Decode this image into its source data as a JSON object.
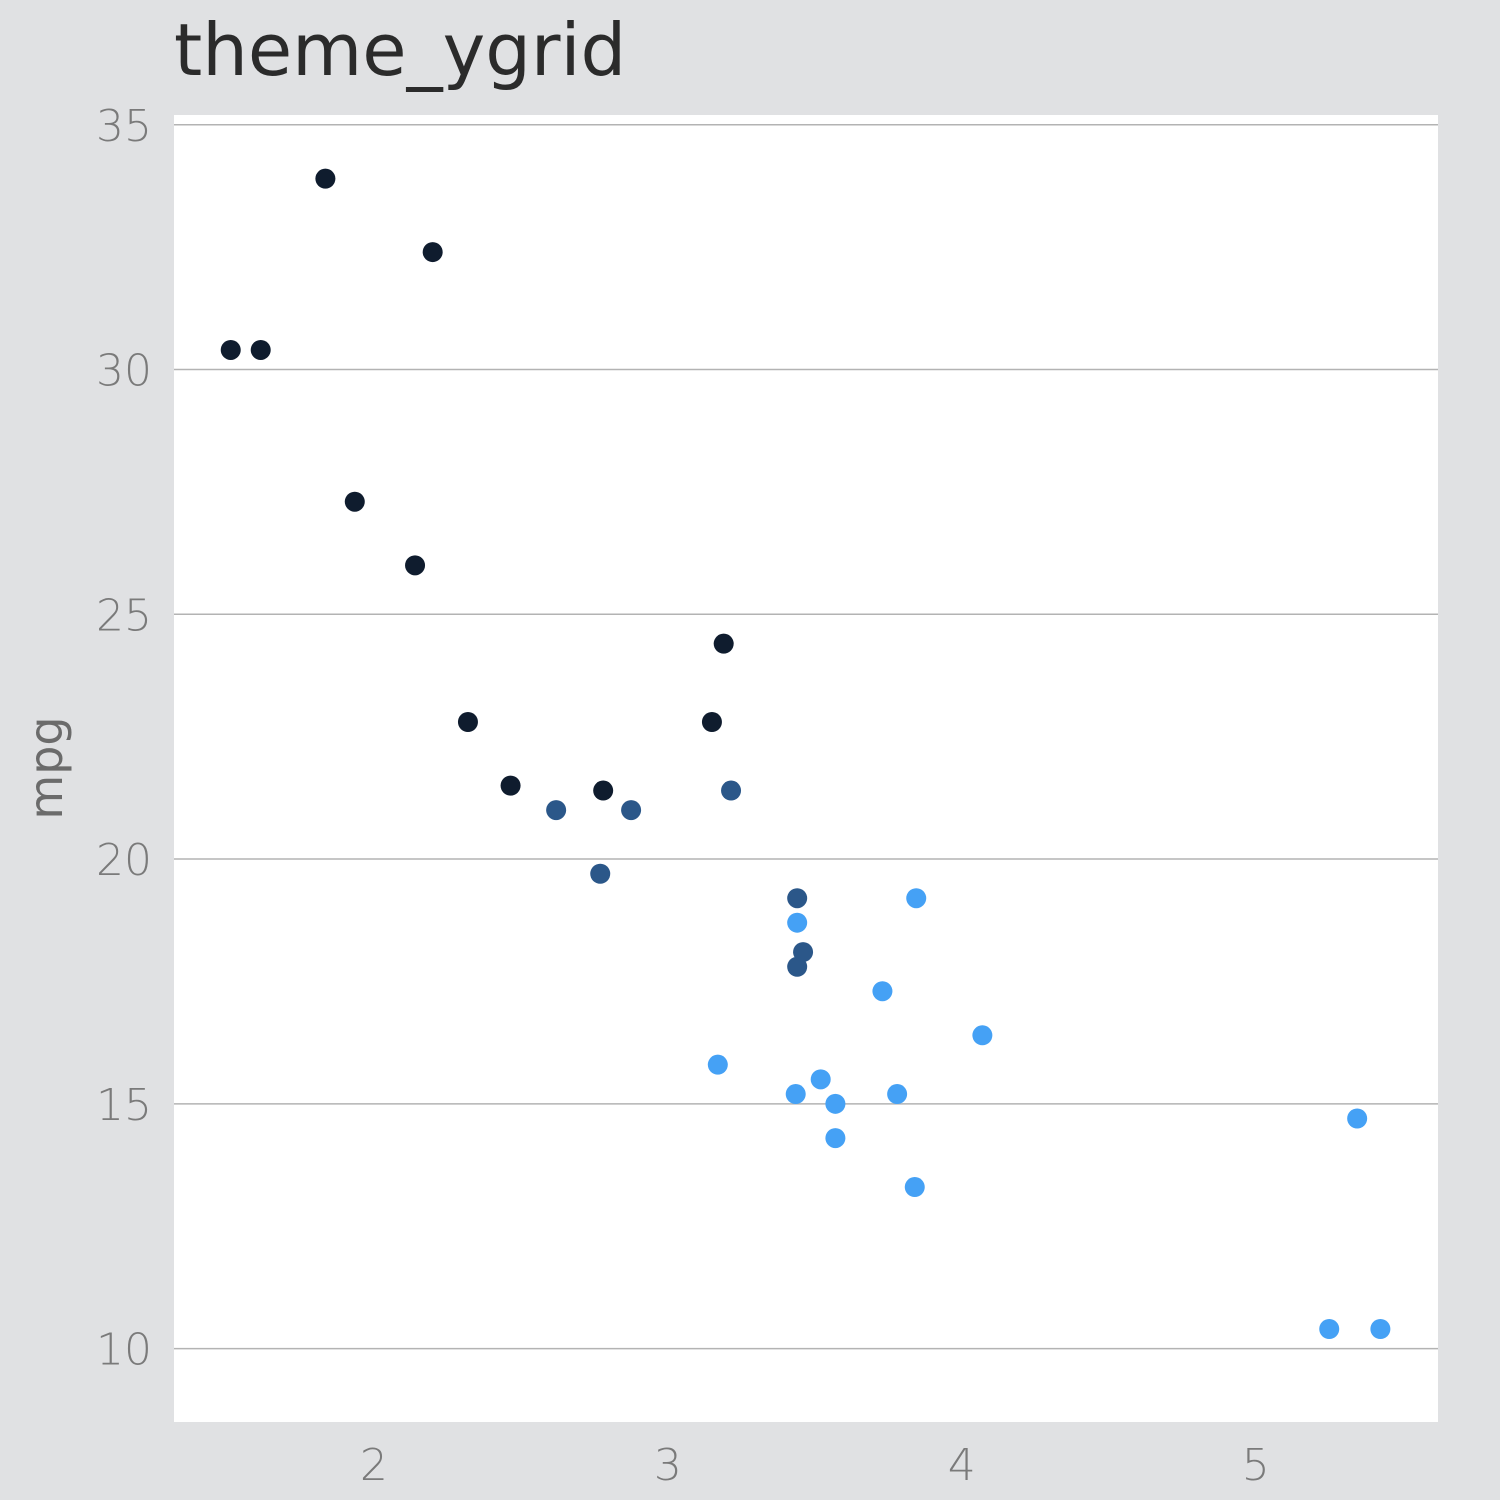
{
  "chart_data": {
    "type": "scatter",
    "title": "theme_ygrid",
    "xlabel": "",
    "ylabel": "mpg",
    "xlim": [
      1.32,
      5.62
    ],
    "ylim": [
      8.5,
      35.2
    ],
    "x_ticks": [
      2,
      3,
      4,
      5
    ],
    "y_ticks": [
      10,
      15,
      20,
      25,
      30,
      35
    ],
    "grid": "horizontal only",
    "legend": "none",
    "colors": {
      "background": "#e0e1e3",
      "panel": "#ffffff",
      "gridline": "#b3b3b3",
      "group_low": "#0f1c2e",
      "group_mid": "#2b5789",
      "group_high": "#45a1f5"
    },
    "series": [
      {
        "color": "#0f1c2e",
        "points": [
          {
            "x": 1.513,
            "y": 30.4
          },
          {
            "x": 1.615,
            "y": 30.4
          },
          {
            "x": 1.835,
            "y": 33.9
          },
          {
            "x": 1.935,
            "y": 27.3
          },
          {
            "x": 2.14,
            "y": 26.0
          },
          {
            "x": 2.2,
            "y": 32.4
          },
          {
            "x": 2.32,
            "y": 22.8
          },
          {
            "x": 2.465,
            "y": 21.5
          },
          {
            "x": 2.78,
            "y": 21.4
          },
          {
            "x": 3.15,
            "y": 22.8
          },
          {
            "x": 3.19,
            "y": 24.4
          }
        ]
      },
      {
        "color": "#2b5789",
        "points": [
          {
            "x": 2.62,
            "y": 21.0
          },
          {
            "x": 2.875,
            "y": 21.0
          },
          {
            "x": 2.77,
            "y": 19.7
          },
          {
            "x": 3.215,
            "y": 21.4
          },
          {
            "x": 3.44,
            "y": 19.2
          },
          {
            "x": 3.46,
            "y": 18.1
          },
          {
            "x": 3.44,
            "y": 17.8
          }
        ]
      },
      {
        "color": "#45a1f5",
        "points": [
          {
            "x": 3.44,
            "y": 18.7
          },
          {
            "x": 3.845,
            "y": 19.2
          },
          {
            "x": 3.73,
            "y": 17.3
          },
          {
            "x": 4.07,
            "y": 16.4
          },
          {
            "x": 3.17,
            "y": 15.8
          },
          {
            "x": 3.435,
            "y": 15.2
          },
          {
            "x": 3.52,
            "y": 15.5
          },
          {
            "x": 3.57,
            "y": 15.0
          },
          {
            "x": 3.78,
            "y": 15.2
          },
          {
            "x": 3.57,
            "y": 14.3
          },
          {
            "x": 3.84,
            "y": 13.3
          },
          {
            "x": 5.345,
            "y": 14.7
          },
          {
            "x": 5.25,
            "y": 10.4
          },
          {
            "x": 5.424,
            "y": 10.4
          }
        ]
      }
    ]
  }
}
